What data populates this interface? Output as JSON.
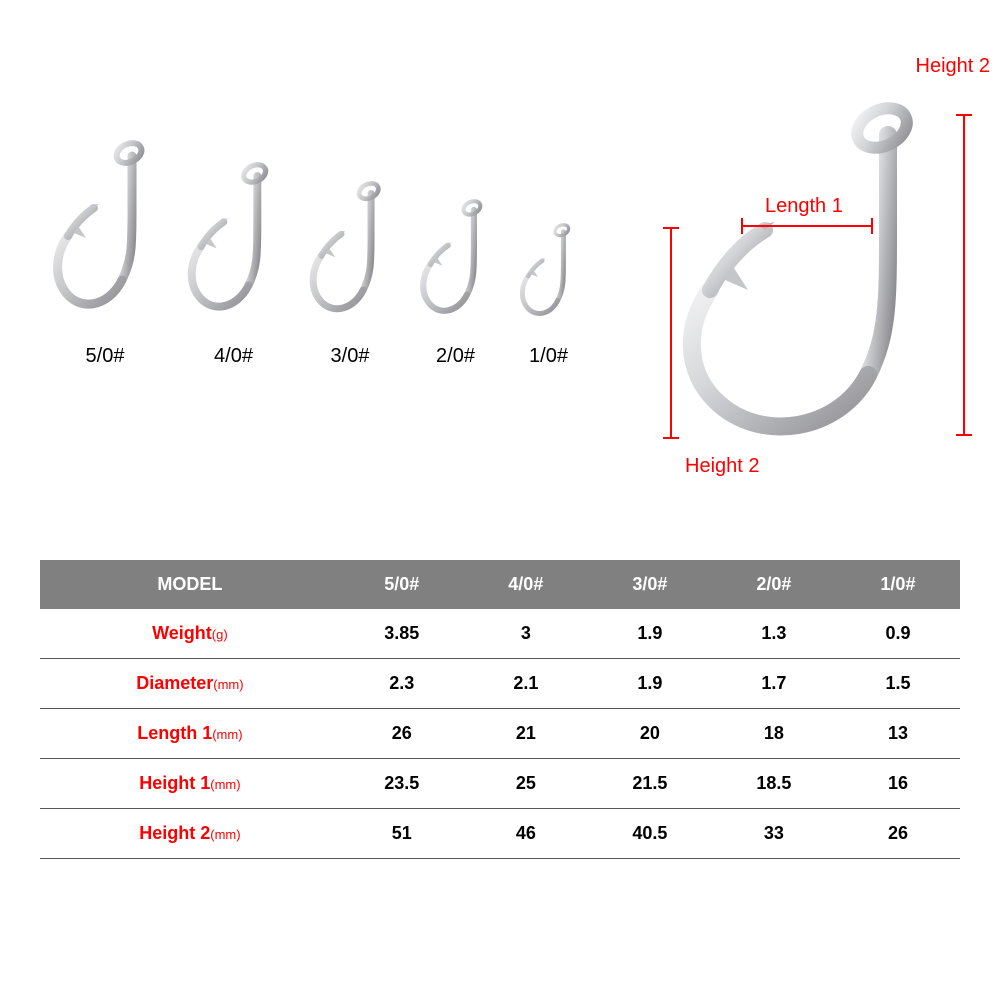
{
  "hooks": {
    "sizes": [
      {
        "label": "5/0#",
        "scale": 1.0
      },
      {
        "label": "4/0#",
        "scale": 0.88
      },
      {
        "label": "3/0#",
        "scale": 0.78
      },
      {
        "label": "2/0#",
        "scale": 0.68
      },
      {
        "label": "1/0#",
        "scale": 0.55
      }
    ],
    "hook_base_w": 110,
    "hook_base_h": 185,
    "hook_color_light": "#e8e8ea",
    "hook_color_mid": "#c5c6c9",
    "hook_color_dark": "#8e8e93"
  },
  "bigHook": {
    "labels": {
      "length1": "Length 1",
      "height2_top": "Height 2",
      "height2_bottom": "Height 2"
    },
    "dim_color": "#ff0000"
  },
  "table": {
    "header_bg": "#808080",
    "header_fg": "#ffffff",
    "row_label_color": "#ff0000",
    "border_color": "#555555",
    "columns": [
      "MODEL",
      "5/0#",
      "4/0#",
      "3/0#",
      "2/0#",
      "1/0#"
    ],
    "rows": [
      {
        "label": "Weight",
        "unit": "(g)",
        "values": [
          "3.85",
          "3",
          "1.9",
          "1.3",
          "0.9"
        ]
      },
      {
        "label": "Diameter",
        "unit": "(mm)",
        "values": [
          "2.3",
          "2.1",
          "1.9",
          "1.7",
          "1.5"
        ]
      },
      {
        "label": "Length 1",
        "unit": "(mm)",
        "values": [
          "26",
          "21",
          "20",
          "18",
          "13"
        ]
      },
      {
        "label": "Height 1",
        "unit": "(mm)",
        "values": [
          "23.5",
          "25",
          "21.5",
          "18.5",
          "16"
        ]
      },
      {
        "label": "Height 2",
        "unit": "(mm)",
        "values": [
          "51",
          "46",
          "40.5",
          "33",
          "26"
        ]
      }
    ]
  }
}
